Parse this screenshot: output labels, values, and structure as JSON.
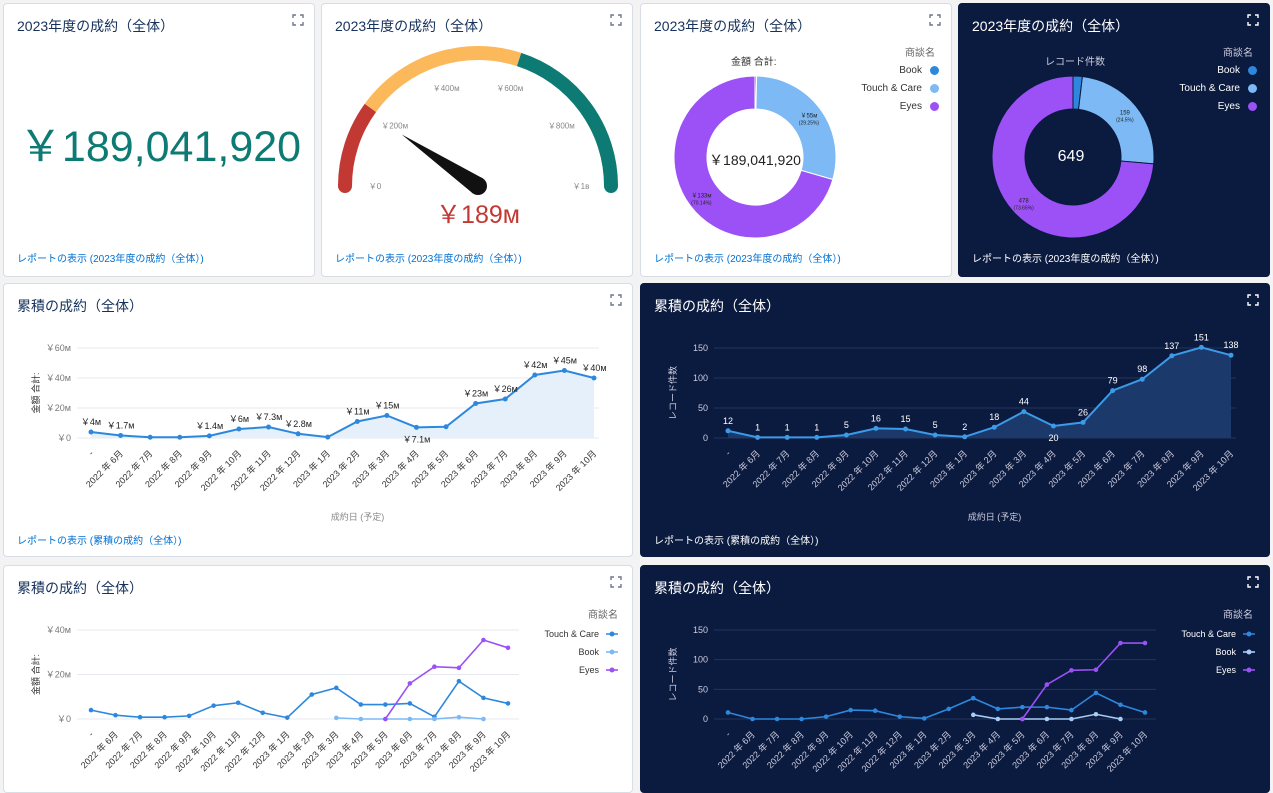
{
  "colors": {
    "teal": "#0d7a73",
    "red": "#c23934",
    "orange": "#fcb95b",
    "blue": "#2d88dd",
    "lightblue": "#7db9f4",
    "purple": "#9b51f5",
    "navy": "#0b1a3f",
    "link": "#0070d2"
  },
  "icons": {
    "expand": "expand-icon"
  },
  "deal_total": {
    "title": "2023年度の成約（全体）",
    "value": "￥189,041,920",
    "link": "レポートの表示 (2023年度の成約（全体）)"
  },
  "gauge": {
    "title": "2023年度の成約（全体）",
    "value_label": "￥189м",
    "value": 189,
    "max": 1000,
    "segments": [
      {
        "from": 0,
        "to": 200,
        "color": "#c23934"
      },
      {
        "from": 200,
        "to": 600,
        "color": "#fcb95b"
      },
      {
        "from": 600,
        "to": 1000,
        "color": "#0d7a73"
      }
    ],
    "ticks": [
      {
        "v": 0,
        "label": "￥0"
      },
      {
        "v": 200,
        "label": "￥200м"
      },
      {
        "v": 400,
        "label": "￥400м"
      },
      {
        "v": 600,
        "label": "￥600м"
      },
      {
        "v": 800,
        "label": "￥800м"
      },
      {
        "v": 1000,
        "label": "￥1в"
      }
    ],
    "link": "レポートの表示 (2023年度の成約（全体）)"
  },
  "donut_amount": {
    "title": "2023年度の成約（全体）",
    "subtitle": "金額 合計:",
    "center": "￥189,041,920",
    "legend_title": "商談名",
    "link": "レポートの表示 (2023年度の成約（全体）)",
    "chart_data": {
      "type": "pie",
      "slices": [
        {
          "name": "Book",
          "value": 0.6,
          "color": "#2d88dd",
          "label": "",
          "pct": ""
        },
        {
          "name": "Touch & Care",
          "value": 55,
          "color": "#7db9f4",
          "label": "￥55м",
          "pct": "(29.25%)"
        },
        {
          "name": "Eyes",
          "value": 133,
          "color": "#9b51f5",
          "label": "￥133м",
          "pct": "(70.14%)"
        }
      ]
    }
  },
  "donut_count": {
    "title": "2023年度の成約（全体）",
    "subtitle": "レコード件数",
    "center": "649",
    "legend_title": "商談名",
    "link": "レポートの表示 (2023年度の成約（全体）)",
    "chart_data": {
      "type": "pie",
      "slices": [
        {
          "name": "Book",
          "value": 12,
          "color": "#2d88dd",
          "label": "",
          "pct": ""
        },
        {
          "name": "Touch & Care",
          "value": 159,
          "color": "#7db9f4",
          "label": "159",
          "pct": "(24.5%)"
        },
        {
          "name": "Eyes",
          "value": 478,
          "color": "#9b51f5",
          "label": "478",
          "pct": "(73.65%)"
        }
      ]
    }
  },
  "cum_amount": {
    "title": "累積の成約（全体）",
    "ylabel": "金額 合計:",
    "xlabel": "成約日 (予定)",
    "link": "レポートの表示 (累積の成約（全体）)",
    "chart_data": {
      "type": "area",
      "categories": [
        "-",
        "2022 年 6月",
        "2022 年 7月",
        "2022 年 8月",
        "2022 年 9月",
        "2022 年 10月",
        "2022 年 11月",
        "2022 年 12月",
        "2023 年 1月",
        "2023 年 2月",
        "2023 年 3月",
        "2023 年 4月",
        "2023 年 5月",
        "2023 年 6月",
        "2023 年 7月",
        "2023 年 8月",
        "2023 年 9月",
        "2023 年 10月"
      ],
      "values": [
        4,
        1.7,
        0.5,
        0.5,
        1.4,
        6,
        7.3,
        2.8,
        0.6,
        11,
        15,
        7.1,
        7.5,
        23,
        26,
        42,
        45,
        40
      ],
      "labels": [
        "￥4м",
        "￥1.7м",
        "",
        "",
        "￥1.4м",
        "￥6м",
        "￥7.3м",
        "￥2.8м",
        "",
        "￥11м",
        "￥15м",
        "￥7.1м",
        "",
        "￥23м",
        "￥26м",
        "￥42м",
        "￥45м",
        "￥40м"
      ],
      "yticks": [
        {
          "v": 0,
          "label": "￥0"
        },
        {
          "v": 20,
          "label": "￥20м"
        },
        {
          "v": 40,
          "label": "￥40м"
        },
        {
          "v": 60,
          "label": "￥60м"
        }
      ],
      "ylim": [
        0,
        60
      ]
    }
  },
  "cum_count": {
    "title": "累積の成約（全体）",
    "ylabel": "レコード件数",
    "xlabel": "成約日 (予定)",
    "link": "レポートの表示 (累積の成約（全体）)",
    "chart_data": {
      "type": "area",
      "categories": [
        "-",
        "2022 年 6月",
        "2022 年 7月",
        "2022 年 8月",
        "2022 年 9月",
        "2022 年 10月",
        "2022 年 11月",
        "2022 年 12月",
        "2023 年 1月",
        "2023 年 2月",
        "2023 年 3月",
        "2023 年 4月",
        "2023 年 5月",
        "2023 年 6月",
        "2023 年 7月",
        "2023 年 8月",
        "2023 年 9月",
        "2023 年 10月"
      ],
      "values": [
        12,
        1,
        1,
        1,
        5,
        16,
        15,
        5,
        2,
        18,
        44,
        20,
        26,
        79,
        98,
        137,
        151,
        138
      ],
      "labels": [
        "12",
        "1",
        "1",
        "1",
        "5",
        "16",
        "15",
        "5",
        "2",
        "18",
        "44",
        "20",
        "26",
        "79",
        "98",
        "137",
        "151",
        "138"
      ],
      "yticks": [
        {
          "v": 0,
          "label": "0"
        },
        {
          "v": 50,
          "label": "50"
        },
        {
          "v": 100,
          "label": "100"
        },
        {
          "v": 150,
          "label": "150"
        }
      ],
      "ylim": [
        0,
        150
      ]
    }
  },
  "multi_amount": {
    "title": "累積の成約（全体）",
    "ylabel": "金額 合計:",
    "legend_title": "商談名",
    "chart_data": {
      "type": "line",
      "categories": [
        "-",
        "2022 年 6月",
        "2022 年 7月",
        "2022 年 8月",
        "2022 年 9月",
        "2022 年 10月",
        "2022 年 11月",
        "2022 年 12月",
        "2023 年 1月",
        "2023 年 2月",
        "2023 年 3月",
        "2023 年 4月",
        "2023 年 5月",
        "2023 年 6月",
        "2023 年 7月",
        "2023 年 8月",
        "2023 年 9月",
        "2023 年 10月"
      ],
      "series": [
        {
          "name": "Touch & Care",
          "color": "#2d88dd",
          "values": [
            4,
            1.7,
            0.8,
            0.8,
            1.4,
            6,
            7.3,
            2.8,
            0.6,
            11,
            14,
            6.5,
            6.5,
            7,
            1,
            17,
            9.5,
            7
          ]
        },
        {
          "name": "Book",
          "color": "#7db9f4",
          "values": [
            null,
            null,
            null,
            null,
            null,
            null,
            null,
            null,
            null,
            null,
            0.5,
            0,
            0,
            0,
            0,
            0.8,
            0,
            null
          ]
        },
        {
          "name": "Eyes",
          "color": "#9b51f5",
          "values": [
            null,
            null,
            null,
            null,
            null,
            null,
            null,
            null,
            null,
            null,
            null,
            null,
            0,
            16,
            23.5,
            23,
            35.5,
            32
          ]
        }
      ],
      "yticks": [
        {
          "v": 0,
          "label": "￥0"
        },
        {
          "v": 20,
          "label": "￥20м"
        },
        {
          "v": 40,
          "label": "￥40м"
        }
      ],
      "ylim": [
        0,
        40
      ]
    }
  },
  "multi_count": {
    "title": "累積の成約（全体）",
    "ylabel": "レコード件数",
    "legend_title": "商談名",
    "chart_data": {
      "type": "line",
      "categories": [
        "-",
        "2022 年 6月",
        "2022 年 7月",
        "2022 年 8月",
        "2022 年 9月",
        "2022 年 10月",
        "2022 年 11月",
        "2022 年 12月",
        "2023 年 1月",
        "2023 年 2月",
        "2023 年 3月",
        "2023 年 4月",
        "2023 年 5月",
        "2023 年 6月",
        "2023 年 7月",
        "2023 年 8月",
        "2023 年 9月",
        "2023 年 10月"
      ],
      "series": [
        {
          "name": "Touch & Care",
          "color": "#2d88dd",
          "values": [
            11,
            0,
            0,
            0,
            4,
            15,
            14,
            4,
            1,
            17,
            35,
            17,
            20,
            20,
            15,
            44,
            24,
            11
          ]
        },
        {
          "name": "Book",
          "color": "#a7cdf6",
          "values": [
            null,
            null,
            null,
            null,
            null,
            null,
            null,
            null,
            null,
            null,
            7,
            0,
            0,
            0,
            0,
            8,
            0,
            null
          ]
        },
        {
          "name": "Eyes",
          "color": "#9b51f5",
          "values": [
            null,
            null,
            null,
            null,
            null,
            null,
            null,
            null,
            null,
            null,
            null,
            null,
            0,
            58,
            82,
            83,
            128,
            128
          ]
        }
      ],
      "yticks": [
        {
          "v": 0,
          "label": "0"
        },
        {
          "v": 50,
          "label": "50"
        },
        {
          "v": 100,
          "label": "100"
        },
        {
          "v": 150,
          "label": "150"
        }
      ],
      "ylim": [
        0,
        150
      ]
    }
  }
}
